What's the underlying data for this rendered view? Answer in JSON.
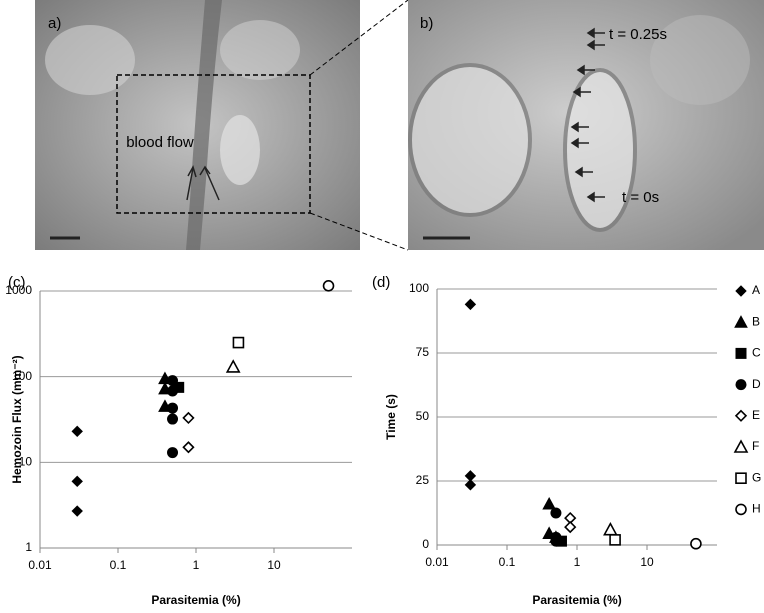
{
  "images": [
    {
      "label": "a)",
      "annotation": "blood flow"
    },
    {
      "label": "b)",
      "annotations": [
        "t = 0.25s",
        "t = 0s"
      ]
    }
  ],
  "chart_data": [
    {
      "type": "scatter",
      "panel": "(c)",
      "xlabel": "Parasitemia (%)",
      "ylabel": "Hemozoin Flux (mm⁻²)",
      "xscale": "log",
      "yscale": "log",
      "xlim": [
        0.01,
        100
      ],
      "ylim": [
        1,
        1000
      ],
      "xticks": [
        0.01,
        0.1,
        1,
        10
      ],
      "yticks": [
        1,
        10,
        100,
        1000
      ],
      "grid": true,
      "series": [
        {
          "name": "A",
          "marker": "diamond",
          "filled": true,
          "color": "#000000",
          "x": [
            0.03,
            0.03,
            0.03
          ],
          "values": [
            23,
            6,
            2.7
          ]
        },
        {
          "name": "B",
          "marker": "triangle",
          "filled": true,
          "color": "#000000",
          "x": [
            0.4,
            0.4,
            0.4
          ],
          "values": [
            95,
            72,
            45
          ]
        },
        {
          "name": "C",
          "marker": "square",
          "filled": true,
          "color": "#000000",
          "x": [
            0.6
          ],
          "values": [
            75
          ]
        },
        {
          "name": "D",
          "marker": "circle",
          "filled": true,
          "color": "#000000",
          "x": [
            0.5,
            0.5,
            0.5,
            0.5,
            0.5
          ],
          "values": [
            90,
            68,
            43,
            32,
            13
          ]
        },
        {
          "name": "E",
          "marker": "diamond",
          "filled": false,
          "color": "#000000",
          "x": [
            0.8,
            0.8
          ],
          "values": [
            33,
            15
          ]
        },
        {
          "name": "F",
          "marker": "triangle",
          "filled": false,
          "color": "#000000",
          "x": [
            3
          ],
          "values": [
            130
          ]
        },
        {
          "name": "G",
          "marker": "square",
          "filled": false,
          "color": "#000000",
          "x": [
            3.5
          ],
          "values": [
            250
          ]
        },
        {
          "name": "H",
          "marker": "circle",
          "filled": false,
          "color": "#000000",
          "x": [
            50
          ],
          "values": [
            1150
          ]
        }
      ]
    },
    {
      "type": "scatter",
      "panel": "(d)",
      "xlabel": "Parasitemia (%)",
      "ylabel": "Time (s)",
      "xscale": "log",
      "yscale": "linear",
      "xlim": [
        0.01,
        100
      ],
      "ylim": [
        0,
        100
      ],
      "xticks": [
        0.01,
        0.1,
        1,
        10
      ],
      "yticks": [
        0,
        25,
        50,
        75,
        100
      ],
      "grid": true,
      "legend": "right",
      "series": [
        {
          "name": "A",
          "marker": "diamond",
          "filled": true,
          "color": "#000000",
          "x": [
            0.03,
            0.03,
            0.03
          ],
          "values": [
            94,
            27,
            23.5
          ]
        },
        {
          "name": "B",
          "marker": "triangle",
          "filled": true,
          "color": "#000000",
          "x": [
            0.4,
            0.4,
            0.5
          ],
          "values": [
            16,
            4.5,
            3
          ]
        },
        {
          "name": "C",
          "marker": "square",
          "filled": true,
          "color": "#000000",
          "x": [
            0.6
          ],
          "values": [
            1.5
          ]
        },
        {
          "name": "D",
          "marker": "circle",
          "filled": true,
          "color": "#000000",
          "x": [
            0.5,
            0.5,
            0.5
          ],
          "values": [
            12.5,
            3,
            1.5
          ]
        },
        {
          "name": "E",
          "marker": "diamond",
          "filled": false,
          "color": "#000000",
          "x": [
            0.8,
            0.8
          ],
          "values": [
            10.5,
            7
          ]
        },
        {
          "name": "F",
          "marker": "triangle",
          "filled": false,
          "color": "#000000",
          "x": [
            3
          ],
          "values": [
            6
          ]
        },
        {
          "name": "G",
          "marker": "square",
          "filled": false,
          "color": "#000000",
          "x": [
            3.5
          ],
          "values": [
            2
          ]
        },
        {
          "name": "H",
          "marker": "circle",
          "filled": false,
          "color": "#000000",
          "x": [
            50
          ],
          "values": [
            0.5
          ]
        }
      ]
    }
  ]
}
